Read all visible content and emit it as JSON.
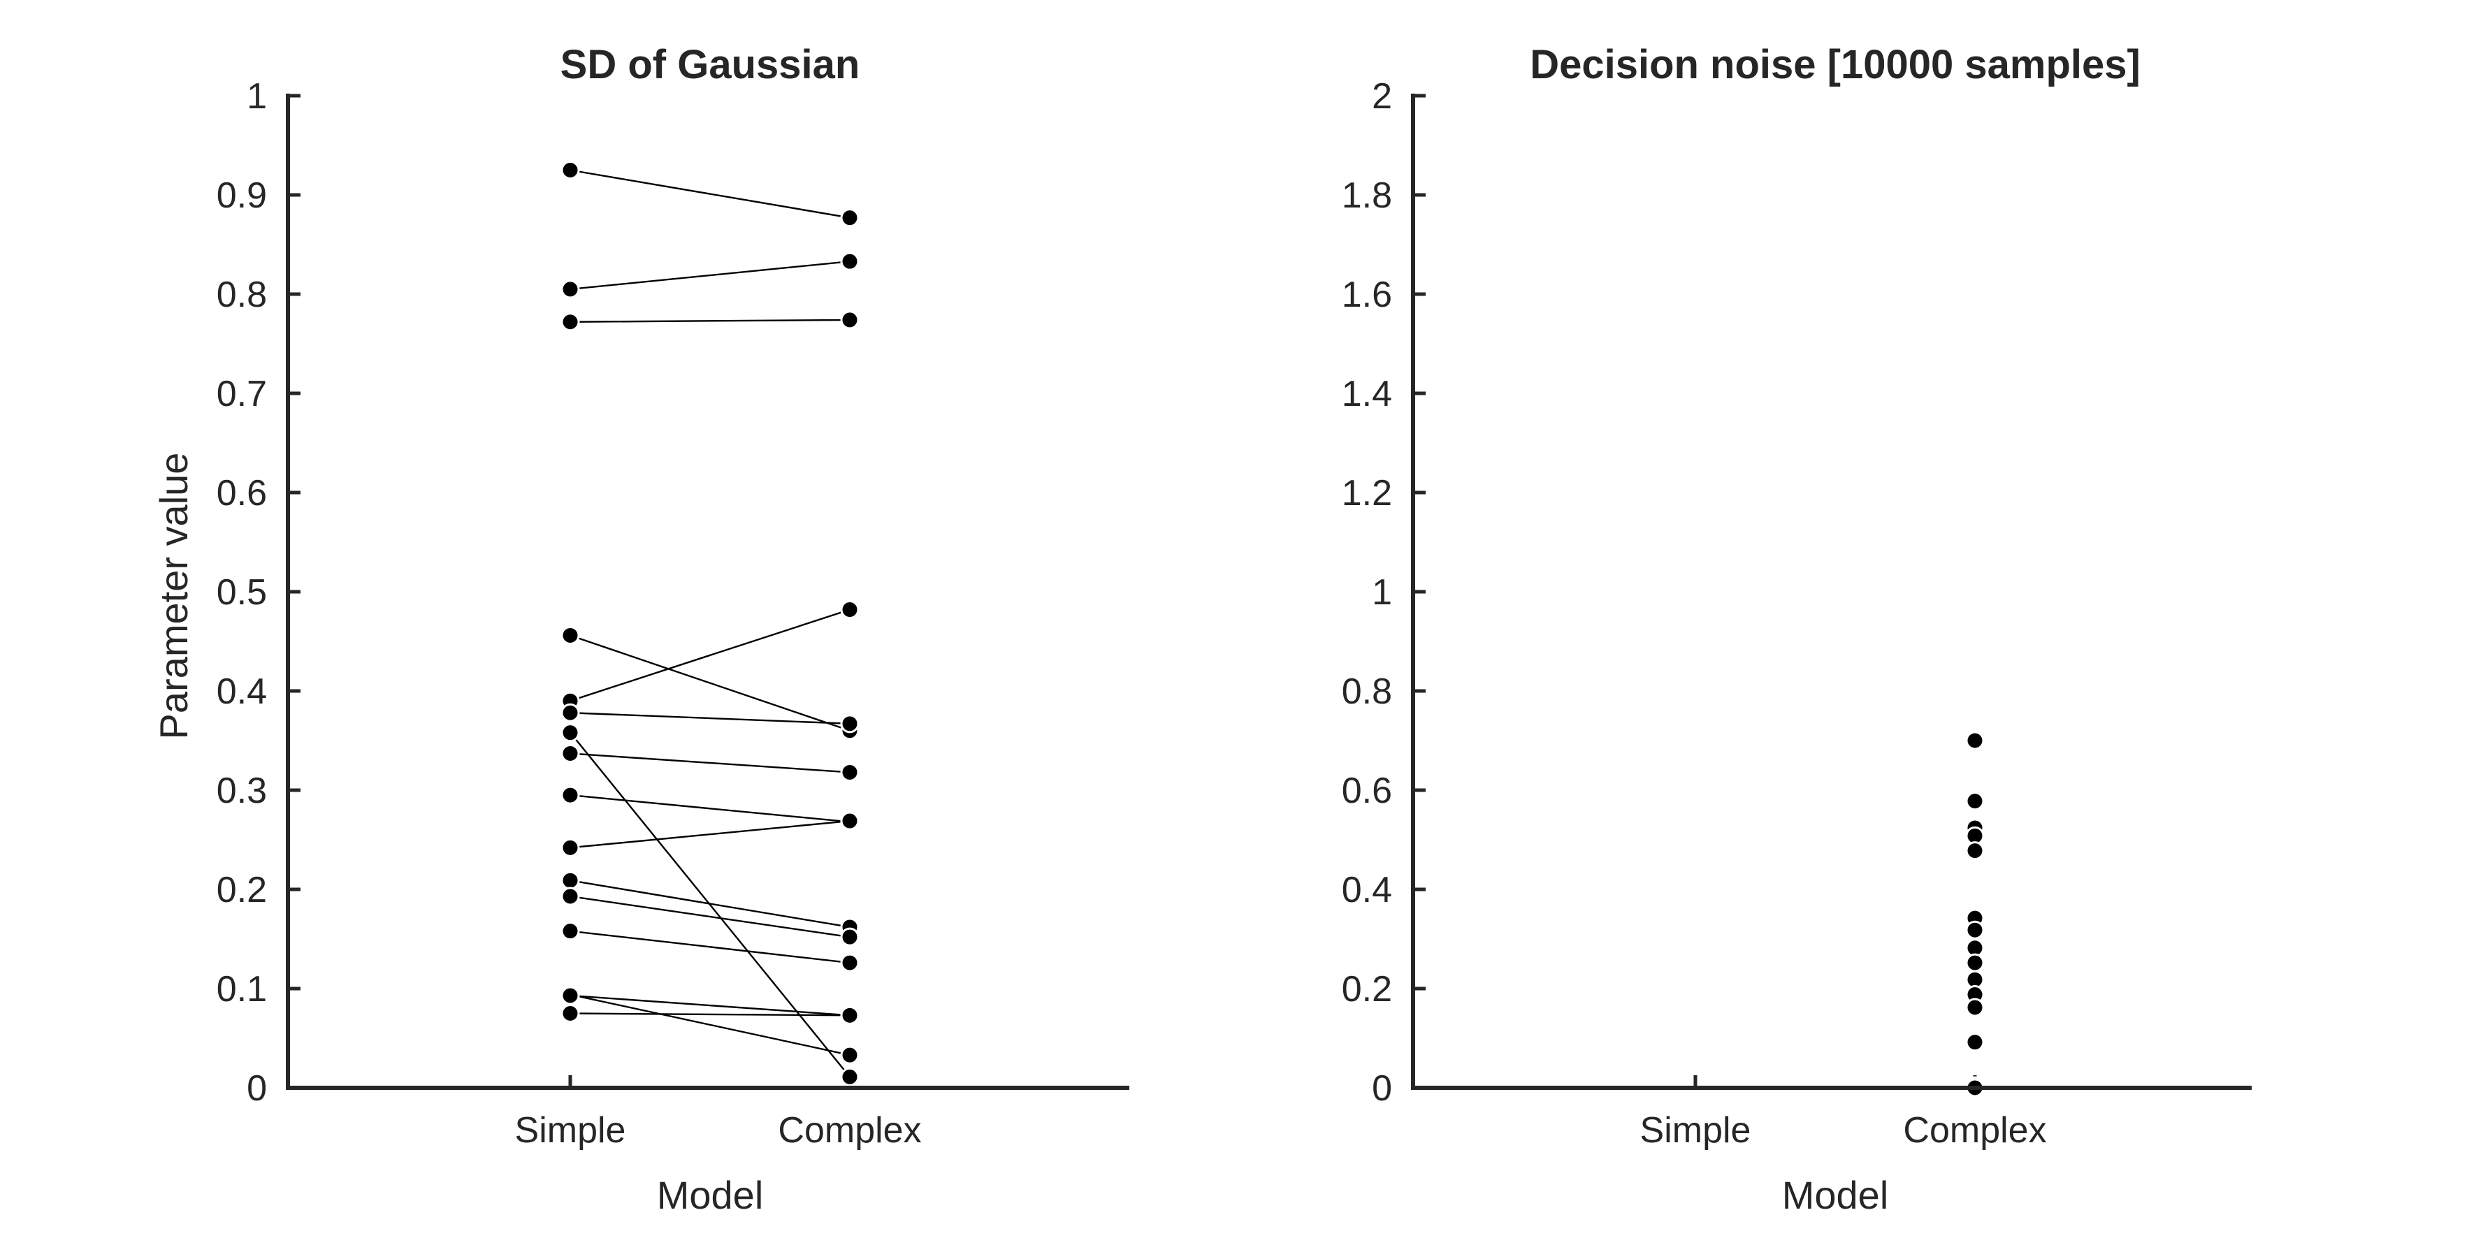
{
  "chart_data": [
    {
      "type": "scatter",
      "title": "SD of Gaussian",
      "xlabel": "Model",
      "ylabel": "Parameter value",
      "categories": [
        "Simple",
        "Complex"
      ],
      "ylim": [
        0,
        1
      ],
      "yticks": [
        "0",
        "0.1",
        "0.2",
        "0.3",
        "0.4",
        "0.5",
        "0.6",
        "0.7",
        "0.8",
        "0.9",
        "1"
      ],
      "paired": true,
      "pairs": [
        {
          "simple": 0.925,
          "complex": 0.877
        },
        {
          "simple": 0.805,
          "complex": 0.833
        },
        {
          "simple": 0.772,
          "complex": 0.774
        },
        {
          "simple": 0.456,
          "complex": 0.36
        },
        {
          "simple": 0.39,
          "complex": 0.482
        },
        {
          "simple": 0.378,
          "complex": 0.367
        },
        {
          "simple": 0.358,
          "complex": 0.011
        },
        {
          "simple": 0.337,
          "complex": 0.318
        },
        {
          "simple": 0.295,
          "complex": 0.268
        },
        {
          "simple": 0.242,
          "complex": 0.269
        },
        {
          "simple": 0.209,
          "complex": 0.162
        },
        {
          "simple": 0.193,
          "complex": 0.152
        },
        {
          "simple": 0.158,
          "complex": 0.126
        },
        {
          "simple": 0.094,
          "complex": 0.033
        },
        {
          "simple": 0.093,
          "complex": 0.073
        },
        {
          "simple": 0.075,
          "complex": 0.073
        }
      ]
    },
    {
      "type": "scatter",
      "title": "Decision noise [10000 samples]",
      "xlabel": "Model",
      "ylabel": "",
      "categories": [
        "Simple",
        "Complex"
      ],
      "ylim": [
        0,
        2
      ],
      "yticks": [
        "0",
        "0.2",
        "0.4",
        "0.6",
        "0.8",
        "1",
        "1.2",
        "1.4",
        "1.6",
        "1.8",
        "2"
      ],
      "series": [
        {
          "category": "Complex",
          "values": [
            0.7,
            0.578,
            0.524,
            0.508,
            0.478,
            0.342,
            0.318,
            0.282,
            0.252,
            0.218,
            0.188,
            0.162,
            0.092,
            0.004,
            0.0
          ]
        }
      ]
    }
  ]
}
